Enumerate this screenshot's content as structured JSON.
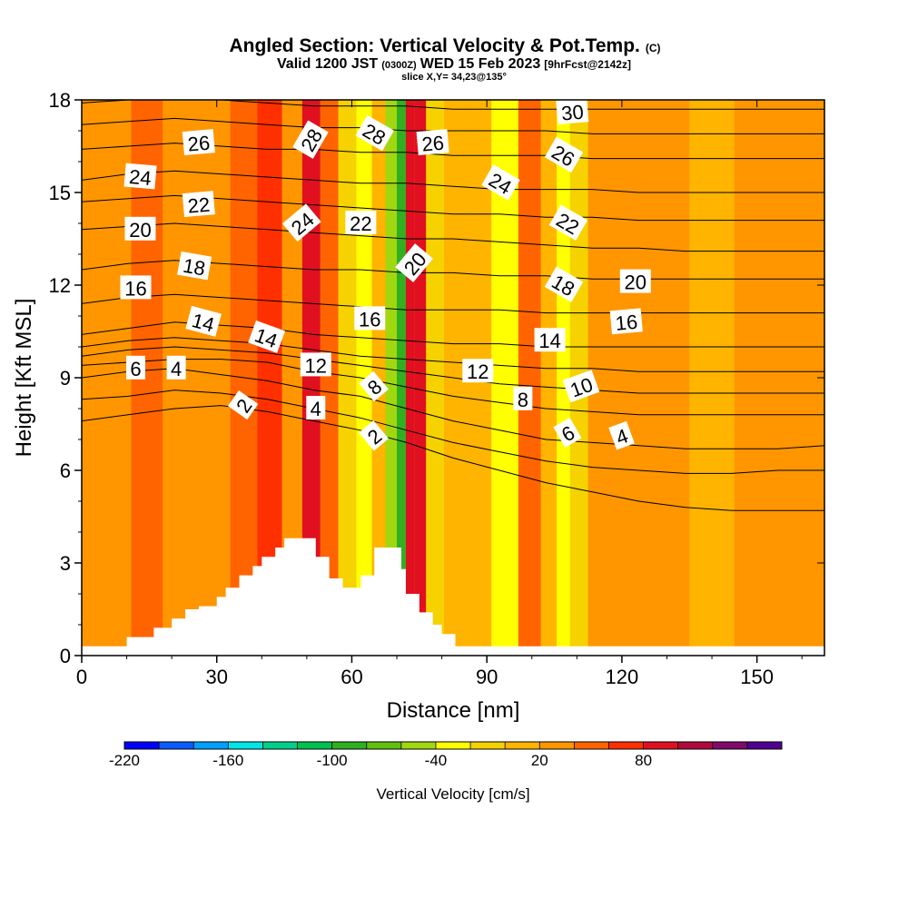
{
  "header": {
    "title": "Angled Section: Vertical Velocity & Pot.Temp.",
    "title_mark": "(C)",
    "valid_prefix": "Valid 1200 JST",
    "valid_utc": "(0300Z)",
    "valid_date": "WED 15 Feb 2023",
    "forecast": "[9hrFcst@2142z]",
    "slice": "slice X,Y= 34,23@135°"
  },
  "chart_data": {
    "type": "heatmap",
    "title": "Angled Section: Vertical Velocity & Pot.Temp.",
    "xlabel": "Distance [nm]",
    "ylabel": "Height [Kft MSL]",
    "xlim": [
      0,
      165
    ],
    "ylim": [
      0,
      18
    ],
    "x_ticks": [
      0,
      30,
      60,
      90,
      120,
      150
    ],
    "y_ticks": [
      0,
      3,
      6,
      9,
      12,
      15,
      18
    ],
    "x_tick_labels": [
      "0",
      "30",
      "60",
      "90",
      "120",
      "150"
    ],
    "y_tick_labels": [
      "0",
      "3",
      "6",
      "9",
      "12",
      "15",
      "18"
    ],
    "velocity_columns": [
      {
        "x": 0,
        "v": 30
      },
      {
        "x": 8,
        "v": 20
      },
      {
        "x": 14,
        "v": 40
      },
      {
        "x": 22,
        "v": 30
      },
      {
        "x": 30,
        "v": 20
      },
      {
        "x": 36,
        "v": 55
      },
      {
        "x": 42,
        "v": 60
      },
      {
        "x": 47,
        "v": 30
      },
      {
        "x": 51,
        "v": 80
      },
      {
        "x": 55,
        "v": 40
      },
      {
        "x": 59,
        "v": -10
      },
      {
        "x": 63,
        "v": -35
      },
      {
        "x": 66,
        "v": 10
      },
      {
        "x": 69,
        "v": -60
      },
      {
        "x": 71,
        "v": -100
      },
      {
        "x": 73,
        "v": 90
      },
      {
        "x": 75,
        "v": 85
      },
      {
        "x": 78,
        "v": -5
      },
      {
        "x": 83,
        "v": 0
      },
      {
        "x": 88,
        "v": 10
      },
      {
        "x": 94,
        "v": -25
      },
      {
        "x": 100,
        "v": 50
      },
      {
        "x": 104,
        "v": 10
      },
      {
        "x": 107,
        "v": -40
      },
      {
        "x": 110,
        "v": -20
      },
      {
        "x": 115,
        "v": 20
      },
      {
        "x": 122,
        "v": 20
      },
      {
        "x": 130,
        "v": 25
      },
      {
        "x": 140,
        "v": 15
      },
      {
        "x": 150,
        "v": 20
      },
      {
        "x": 165,
        "v": 25
      }
    ],
    "terrain_profile": [
      [
        0,
        0.3
      ],
      [
        10,
        0.3
      ],
      [
        10,
        0.6
      ],
      [
        16,
        0.6
      ],
      [
        16,
        0.9
      ],
      [
        20,
        0.9
      ],
      [
        20,
        1.2
      ],
      [
        23,
        1.2
      ],
      [
        23,
        1.5
      ],
      [
        26,
        1.5
      ],
      [
        26,
        1.6
      ],
      [
        30,
        1.6
      ],
      [
        30,
        1.9
      ],
      [
        32,
        1.9
      ],
      [
        32,
        2.2
      ],
      [
        35,
        2.2
      ],
      [
        35,
        2.6
      ],
      [
        38,
        2.6
      ],
      [
        38,
        2.9
      ],
      [
        40,
        2.9
      ],
      [
        40,
        3.2
      ],
      [
        43,
        3.2
      ],
      [
        43,
        3.5
      ],
      [
        45,
        3.5
      ],
      [
        45,
        3.8
      ],
      [
        52,
        3.8
      ],
      [
        52,
        3.2
      ],
      [
        55,
        3.2
      ],
      [
        55,
        2.5
      ],
      [
        58,
        2.5
      ],
      [
        58,
        2.2
      ],
      [
        62,
        2.2
      ],
      [
        62,
        2.6
      ],
      [
        65,
        2.6
      ],
      [
        65,
        3.5
      ],
      [
        71,
        3.5
      ],
      [
        71,
        2.8
      ],
      [
        72,
        2.8
      ],
      [
        72,
        2.0
      ],
      [
        75,
        2.0
      ],
      [
        75,
        1.4
      ],
      [
        78,
        1.4
      ],
      [
        78,
        1.0
      ],
      [
        80,
        1.0
      ],
      [
        80,
        0.7
      ],
      [
        83,
        0.7
      ],
      [
        83,
        0.3
      ],
      [
        165,
        0.3
      ]
    ],
    "theta_contours": [
      {
        "value": 2,
        "anchor": [
          36,
          8.1
        ],
        "h": [
          7.6,
          7.8,
          8.0,
          8.1,
          7.9,
          7.6,
          7.3,
          6.9,
          6.4,
          6.0,
          5.6,
          5.3,
          5.0,
          4.8,
          4.7,
          4.7,
          4.7
        ]
      },
      {
        "value": 4,
        "anchor": [
          52,
          8.0
        ],
        "h": [
          8.3,
          8.4,
          8.6,
          8.5,
          8.3,
          8.0,
          7.7,
          7.3,
          6.9,
          6.6,
          6.3,
          6.1,
          6.0,
          5.9,
          5.9,
          6.0,
          6.0
        ]
      },
      {
        "value": 6,
        "anchor": [
          12,
          9.3
        ],
        "h": [
          9.0,
          9.2,
          9.3,
          9.1,
          8.9,
          8.6,
          8.4,
          8.0,
          7.6,
          7.3,
          7.0,
          6.9,
          6.8,
          6.7,
          6.7,
          6.7,
          6.8
        ]
      },
      {
        "value": 8,
        "anchor": [
          98,
          8.3
        ],
        "h": [
          9.4,
          9.5,
          9.6,
          9.6,
          9.5,
          9.2,
          9.0,
          8.7,
          8.4,
          8.2,
          8.0,
          7.9,
          7.8,
          7.8,
          7.8,
          7.8,
          7.8
        ]
      },
      {
        "value": 10,
        "anchor": [
          111,
          8.7
        ],
        "h": [
          9.7,
          9.9,
          10.0,
          9.9,
          9.8,
          9.6,
          9.4,
          9.2,
          9.0,
          8.8,
          8.7,
          8.6,
          8.5,
          8.5,
          8.5,
          8.5,
          8.5
        ]
      },
      {
        "value": 12,
        "anchor": [
          52,
          9.4
        ],
        "h": [
          10.0,
          10.2,
          10.3,
          10.2,
          10.1,
          9.9,
          9.7,
          9.6,
          9.5,
          9.4,
          9.3,
          9.3,
          9.2,
          9.2,
          9.2,
          9.2,
          9.2
        ]
      },
      {
        "value": 14,
        "anchor": [
          41,
          10.3
        ],
        "h": [
          10.4,
          10.6,
          10.8,
          10.7,
          10.6,
          10.4,
          10.3,
          10.2,
          10.1,
          10.1,
          10.0,
          10.0,
          10.0,
          10.0,
          10.0,
          10.0,
          10.0
        ]
      },
      {
        "value": 16,
        "anchor": [
          12,
          11.9
        ],
        "h": [
          11.4,
          11.6,
          11.7,
          11.6,
          11.5,
          11.4,
          11.3,
          11.2,
          11.2,
          11.2,
          11.1,
          11.1,
          11.1,
          11.1,
          11.1,
          11.1,
          11.1
        ]
      },
      {
        "value": 18,
        "anchor": [
          25,
          12.6
        ],
        "h": [
          12.5,
          12.7,
          12.8,
          12.7,
          12.6,
          12.5,
          12.5,
          12.4,
          12.4,
          12.3,
          12.3,
          12.2,
          12.2,
          12.2,
          12.2,
          12.2,
          12.2
        ]
      },
      {
        "value": 20,
        "anchor": [
          123,
          12.1
        ],
        "h": [
          13.8,
          13.9,
          14.0,
          13.9,
          13.8,
          13.7,
          13.6,
          13.5,
          13.5,
          13.4,
          13.3,
          13.2,
          13.2,
          13.1,
          13.1,
          13.1,
          13.1
        ]
      },
      {
        "value": 22,
        "anchor": [
          62,
          14.0
        ],
        "h": [
          14.7,
          14.8,
          14.9,
          14.8,
          14.7,
          14.6,
          14.5,
          14.4,
          14.3,
          14.3,
          14.2,
          14.2,
          14.1,
          14.1,
          14.1,
          14.1,
          14.1
        ]
      },
      {
        "value": 24,
        "anchor": [
          13,
          15.5
        ],
        "h": [
          15.4,
          15.6,
          15.7,
          15.6,
          15.5,
          15.4,
          15.3,
          15.3,
          15.2,
          15.1,
          15.1,
          15.1,
          15.0,
          15.0,
          15.0,
          15.0,
          15.0
        ]
      },
      {
        "value": 26,
        "anchor": [
          26,
          16.6
        ],
        "h": [
          16.4,
          16.5,
          16.6,
          16.5,
          16.4,
          16.4,
          16.3,
          16.3,
          16.2,
          16.2,
          16.2,
          16.1,
          16.1,
          16.1,
          16.1,
          16.1,
          16.1
        ]
      },
      {
        "value": 28,
        "anchor": [
          65,
          16.9
        ],
        "h": [
          17.2,
          17.3,
          17.4,
          17.3,
          17.2,
          17.1,
          17.1,
          17.0,
          17.0,
          17.0,
          17.0,
          16.9,
          16.9,
          16.9,
          16.9,
          16.9,
          16.9
        ]
      },
      {
        "value": 30,
        "anchor": [
          109,
          17.6
        ],
        "h": [
          17.9,
          18.0,
          18.1,
          18.0,
          17.9,
          17.8,
          17.8,
          17.8,
          17.7,
          17.7,
          17.7,
          17.7,
          17.7,
          17.7,
          17.7,
          17.7,
          17.7
        ]
      }
    ],
    "contour_labels": [
      {
        "text": "2",
        "x": 36,
        "y": 8.1,
        "rot": -55
      },
      {
        "text": "4",
        "x": 52,
        "y": 8.0,
        "rot": 0
      },
      {
        "text": "6",
        "x": 12,
        "y": 9.3,
        "rot": 0
      },
      {
        "text": "4",
        "x": 21,
        "y": 9.3,
        "rot": 0
      },
      {
        "text": "14",
        "x": 27,
        "y": 10.8,
        "rot": 15
      },
      {
        "text": "14",
        "x": 41,
        "y": 10.3,
        "rot": 20
      },
      {
        "text": "12",
        "x": 52,
        "y": 9.4,
        "rot": 0
      },
      {
        "text": "8",
        "x": 65,
        "y": 8.7,
        "rot": -40
      },
      {
        "text": "2",
        "x": 65,
        "y": 7.1,
        "rot": -40
      },
      {
        "text": "16",
        "x": 64,
        "y": 10.9,
        "rot": 0
      },
      {
        "text": "16",
        "x": 12,
        "y": 11.9,
        "rot": 0
      },
      {
        "text": "18",
        "x": 25,
        "y": 12.6,
        "rot": 10
      },
      {
        "text": "20",
        "x": 13,
        "y": 13.8,
        "rot": 0
      },
      {
        "text": "22",
        "x": 26,
        "y": 14.6,
        "rot": -5
      },
      {
        "text": "24",
        "x": 13,
        "y": 15.5,
        "rot": 5
      },
      {
        "text": "26",
        "x": 26,
        "y": 16.6,
        "rot": -5
      },
      {
        "text": "24",
        "x": 49,
        "y": 14.0,
        "rot": -40
      },
      {
        "text": "22",
        "x": 62,
        "y": 14.0,
        "rot": 0
      },
      {
        "text": "28",
        "x": 51,
        "y": 16.7,
        "rot": -60
      },
      {
        "text": "28",
        "x": 65,
        "y": 16.9,
        "rot": 30
      },
      {
        "text": "26",
        "x": 78,
        "y": 16.6,
        "rot": -5
      },
      {
        "text": "20",
        "x": 74,
        "y": 12.7,
        "rot": -50
      },
      {
        "text": "12",
        "x": 88,
        "y": 9.2,
        "rot": 0
      },
      {
        "text": "8",
        "x": 98,
        "y": 8.3,
        "rot": 0
      },
      {
        "text": "24",
        "x": 93,
        "y": 15.3,
        "rot": 30
      },
      {
        "text": "26",
        "x": 107,
        "y": 16.2,
        "rot": 30
      },
      {
        "text": "22",
        "x": 108,
        "y": 14.0,
        "rot": 30
      },
      {
        "text": "18",
        "x": 107,
        "y": 12.0,
        "rot": 30
      },
      {
        "text": "14",
        "x": 104,
        "y": 10.2,
        "rot": 0
      },
      {
        "text": "10",
        "x": 111,
        "y": 8.7,
        "rot": -20
      },
      {
        "text": "6",
        "x": 108,
        "y": 7.2,
        "rot": -30
      },
      {
        "text": "4",
        "x": 120,
        "y": 7.1,
        "rot": -20
      },
      {
        "text": "16",
        "x": 121,
        "y": 10.8,
        "rot": -5
      },
      {
        "text": "20",
        "x": 123,
        "y": 12.1,
        "rot": 0
      },
      {
        "text": "30",
        "x": 109,
        "y": 17.6,
        "rot": -5
      }
    ],
    "colorbar": {
      "label": "Vertical Velocity [cm/s]",
      "min": -220,
      "max": 140,
      "step": 20,
      "tick_labels": [
        "-220",
        "-160",
        "-100",
        "-40",
        "20",
        "80"
      ],
      "tick_values": [
        -220,
        -160,
        -100,
        -40,
        20,
        80
      ],
      "colors": [
        "#0000ff",
        "#0a5cff",
        "#00a0ff",
        "#00e6e6",
        "#00d08a",
        "#00c050",
        "#30b020",
        "#60c010",
        "#a0d810",
        "#ffff00",
        "#f5d200",
        "#ffb400",
        "#ff9600",
        "#ff6400",
        "#ff3000",
        "#e01020",
        "#b00a3c",
        "#800a6a",
        "#500090"
      ]
    }
  }
}
